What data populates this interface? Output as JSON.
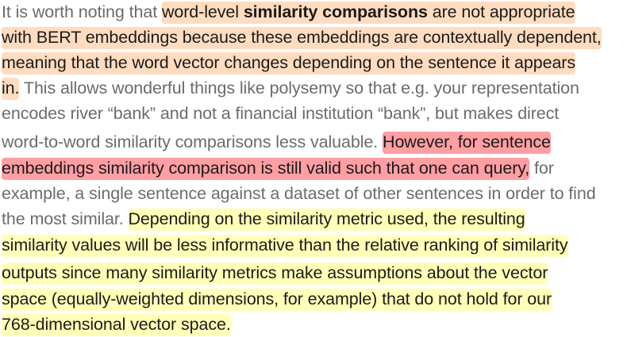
{
  "paragraph": {
    "line1": {
      "a": "It is worth noting that ",
      "b": "word-level ",
      "c": "similarity comparisons",
      "d": " are not appropriate"
    },
    "line2": "with BERT embeddings because these embeddings are contextually dependent,",
    "line3": "meaning that the word vector changes depending on the sentence it appears",
    "line4": {
      "a": "in.",
      "b": " This allows wonderful things like polysemy so that e.g. your representation"
    },
    "line5": "encodes river “bank” and not a financial institution “bank”, but makes direct",
    "line6": {
      "a": "word-to-word similarity comparisons less valuable. ",
      "b": "However, for sentence"
    },
    "line7": {
      "a": "embeddings similarity comparison is still valid such that one can query,",
      "b": " for"
    },
    "line8": "example, a single sentence against a dataset of other sentences in order to find",
    "line9": {
      "a": "the most similar. ",
      "b": "Depending on the similarity metric used, the resulting"
    },
    "line10": "similarity values will be less informative than the relative ranking of similarity",
    "line11": "outputs since many similarity metrics make assumptions about the vector",
    "line12": "space (equally-weighted dimensions, for example) that do not hold for our",
    "line13": "768-dimensional vector space."
  },
  "colors": {
    "plain_text": "#6b6b6b",
    "highlight_orange": "#ffdcbf",
    "highlight_red": "#ff9ea3",
    "highlight_yellow": "#ffffb8"
  }
}
